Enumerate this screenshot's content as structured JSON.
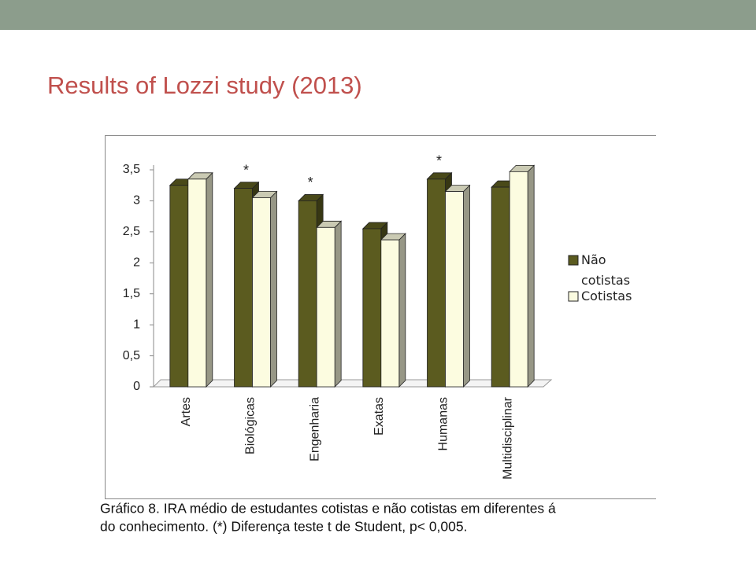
{
  "title": "Results of Lozzi study (2013)",
  "chart_data": {
    "type": "bar",
    "categories": [
      "Artes",
      "Biológicas",
      "Engenharia",
      "Exatas",
      "Humanas",
      "Multidisciplinar"
    ],
    "series": [
      {
        "name": "Não cotistas",
        "color": "#5b5b1f",
        "values": [
          3.25,
          3.2,
          3.0,
          2.55,
          3.35,
          3.22
        ]
      },
      {
        "name": "Cotistas",
        "color": "#fcfce0",
        "values": [
          3.35,
          3.05,
          2.57,
          2.37,
          3.15,
          3.47
        ]
      }
    ],
    "significance": [
      null,
      "*",
      "*",
      null,
      "*",
      null
    ],
    "ylim": [
      0,
      3.5
    ],
    "yticks": [
      0,
      {
        "value": 0.5,
        "label": "0,5"
      },
      1,
      {
        "value": 1.5,
        "label": "1,5"
      },
      2,
      {
        "value": 2.5,
        "label": "2,5"
      },
      3,
      {
        "value": 3.5,
        "label": "3,5"
      }
    ],
    "legend": "right",
    "caption": [
      "Gráfico 8. IRA médio de estudantes cotistas e não cotistas em diferentes á",
      "do conhecimento. (*) Diferença teste t de Student, p< 0,005."
    ]
  }
}
